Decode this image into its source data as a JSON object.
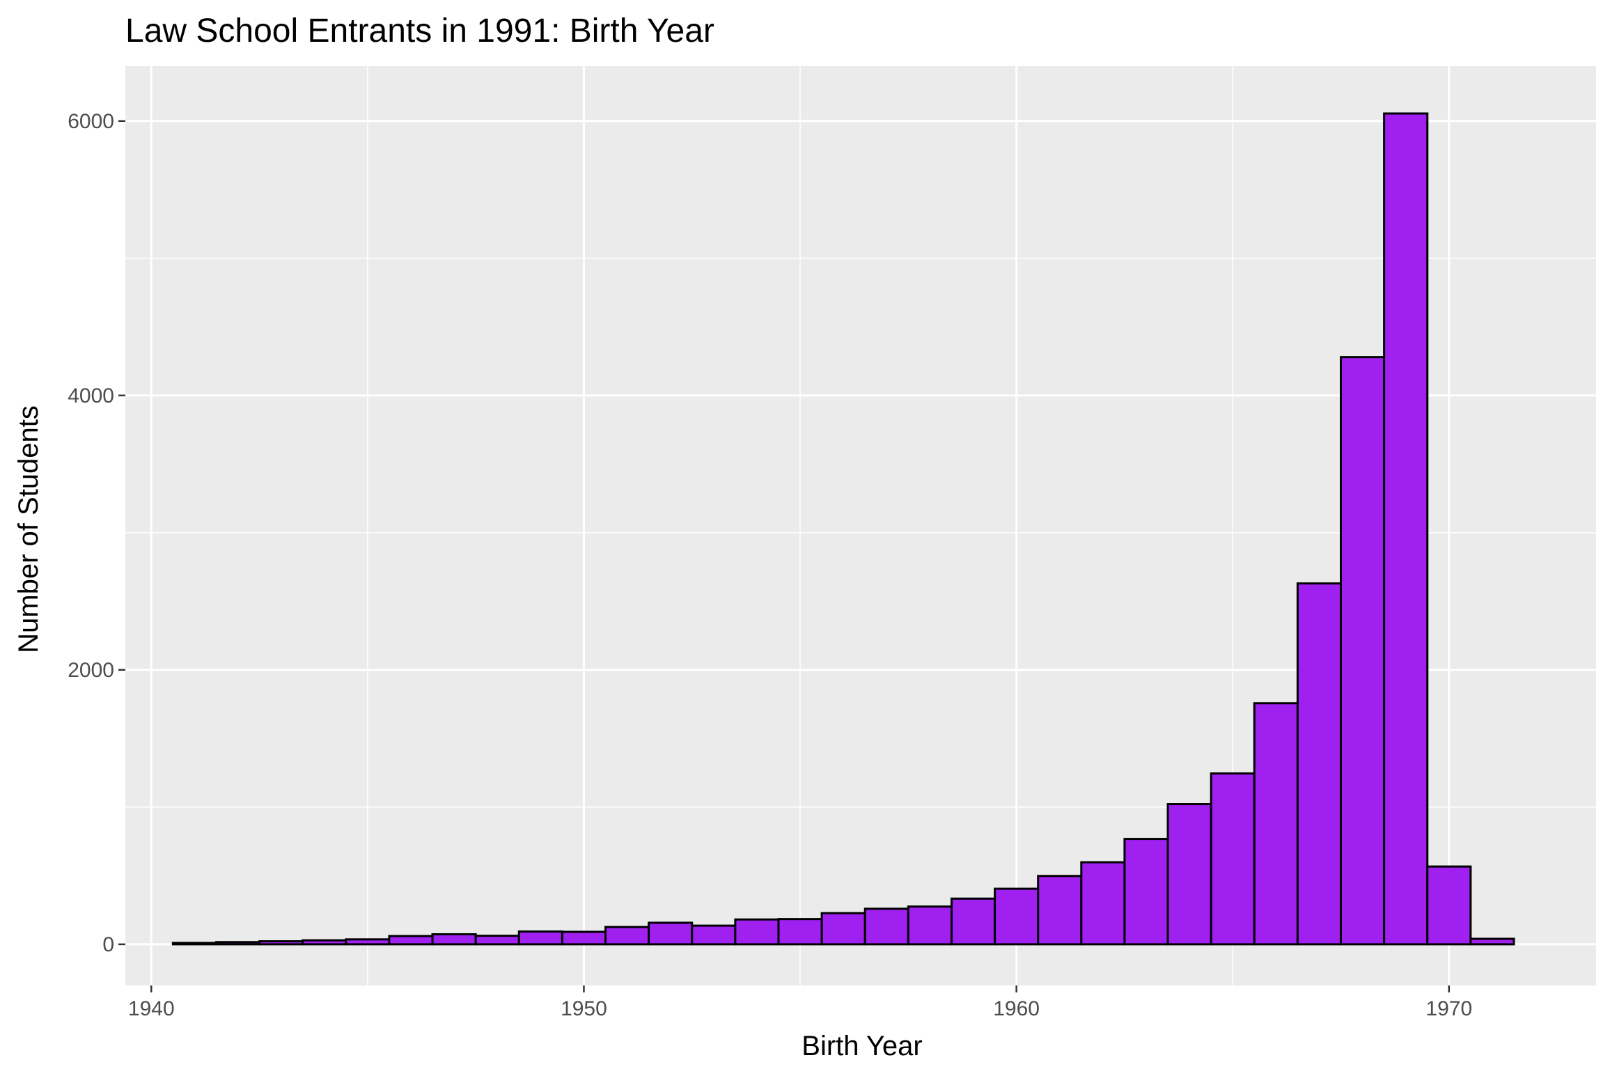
{
  "chart_data": {
    "type": "bar",
    "title": "Law School Entrants in 1991: Birth Year",
    "xlabel": "Birth Year",
    "ylabel": "Number of Students",
    "xlim": [
      1939.4,
      1973.4
    ],
    "ylim": [
      -300,
      6400
    ],
    "x_ticks": [
      1940,
      1950,
      1960,
      1970
    ],
    "x_tick_labels": [
      "1940",
      "1950",
      "1960",
      "1970"
    ],
    "y_ticks": [
      0,
      2000,
      4000,
      6000
    ],
    "y_tick_labels": [
      "0",
      "2000",
      "4000",
      "6000"
    ],
    "grid": true,
    "bin_width": 1,
    "bins": [
      1941,
      1942,
      1943,
      1944,
      1945,
      1946,
      1947,
      1948,
      1949,
      1950,
      1951,
      1952,
      1953,
      1954,
      1955,
      1956,
      1957,
      1958,
      1959,
      1960,
      1961,
      1962,
      1963,
      1964,
      1965,
      1966,
      1967,
      1968,
      1969,
      1970,
      1971,
      1972
    ],
    "values": [
      10,
      16,
      22,
      29,
      36,
      60,
      73,
      62,
      93,
      91,
      126,
      157,
      136,
      181,
      184,
      227,
      259,
      275,
      333,
      405,
      498,
      598,
      768,
      1022,
      1245,
      1757,
      2630,
      4280,
      6055,
      567,
      40,
      0
    ],
    "colors": {
      "bar_fill": "#A020F0",
      "bar_outline": "#000000",
      "panel_background": "#EBEBEB",
      "grid": "#FFFFFF"
    }
  }
}
